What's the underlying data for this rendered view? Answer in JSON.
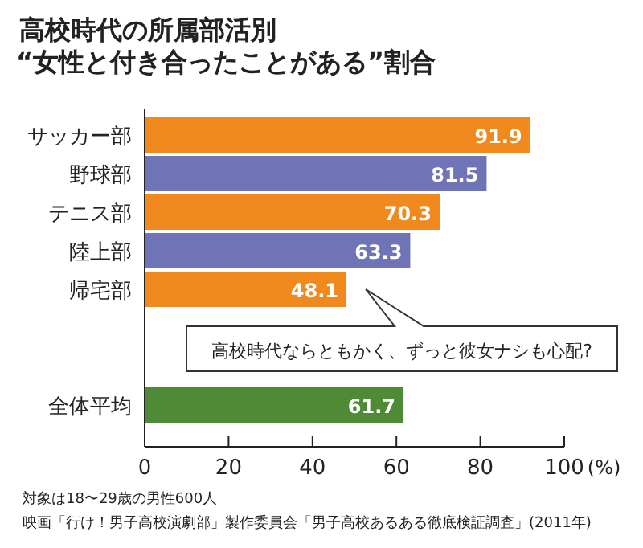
{
  "chart_data": {
    "type": "bar",
    "orientation": "horizontal",
    "title": "高校時代の所属部活別",
    "subtitle": "“女性と付き合ったことがある”割合",
    "categories": [
      "サッカー部",
      "野球部",
      "テニス部",
      "陸上部",
      "帰宅部",
      null,
      null,
      "全体平均"
    ],
    "values": [
      91.9,
      81.5,
      70.3,
      63.3,
      48.1,
      null,
      null,
      61.7
    ],
    "colors": [
      "#f08a1e",
      "#6e74b6",
      "#f08a1e",
      "#6e74b6",
      "#f08a1e",
      null,
      null,
      "#4f8a36"
    ],
    "data_labels": true,
    "xlim": [
      0,
      100
    ],
    "xticks": [
      0,
      20,
      40,
      60,
      80,
      100
    ],
    "xlabel": "(%)",
    "grid": false,
    "annotations": [
      {
        "text": "高校時代ならともかく、ずっと彼女ナシも心配?",
        "x": 48.1,
        "y": "帰宅部"
      },
      "対象は18〜29歳の男性600人",
      "映画「行け！男子高校演劇部」製作委員会「男子高校あるある徹底検証調査」(2011年)"
    ]
  }
}
